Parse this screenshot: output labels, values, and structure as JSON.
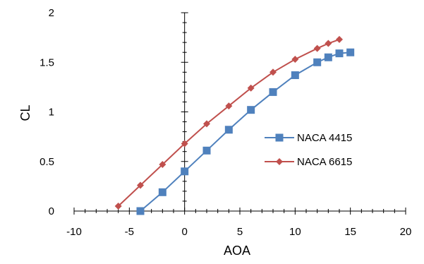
{
  "chart_data": {
    "type": "line",
    "title": "",
    "xlabel": "AOA",
    "ylabel": "CL",
    "xlim": [
      -10,
      20
    ],
    "ylim": [
      0,
      2
    ],
    "xticks": [
      -10,
      -5,
      0,
      5,
      10,
      15,
      20
    ],
    "yticks": [
      0,
      0.5,
      1,
      1.5,
      2
    ],
    "xtick_labels": [
      "-10",
      "-5",
      "0",
      "5",
      "10",
      "15",
      "20"
    ],
    "ytick_labels": [
      "0",
      "0.5",
      "1",
      "1.5",
      "2"
    ],
    "grid": false,
    "legend": "right",
    "series": [
      {
        "name": "NACA 4415",
        "color": "#4F81BD",
        "marker": "square",
        "x": [
          -4,
          -2,
          0,
          2,
          4,
          6,
          8,
          10,
          12,
          13,
          14,
          15
        ],
        "y": [
          0.0,
          0.19,
          0.4,
          0.61,
          0.82,
          1.02,
          1.2,
          1.37,
          1.5,
          1.55,
          1.59,
          1.6
        ]
      },
      {
        "name": "NACA 6615",
        "color": "#C0504D",
        "marker": "diamond",
        "x": [
          -6,
          -4,
          -2,
          0,
          2,
          4,
          6,
          8,
          10,
          12,
          13,
          14
        ],
        "y": [
          0.05,
          0.26,
          0.47,
          0.68,
          0.88,
          1.06,
          1.24,
          1.4,
          1.53,
          1.64,
          1.69,
          1.73
        ]
      }
    ]
  }
}
